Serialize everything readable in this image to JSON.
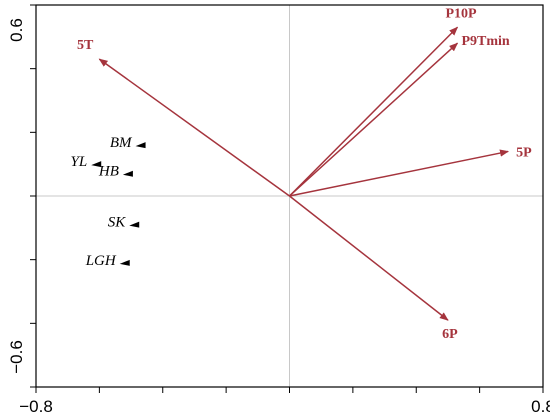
{
  "chart_data": {
    "type": "scatter",
    "title": "",
    "xlabel": "",
    "ylabel": "",
    "xlim": [
      -0.8,
      0.8
    ],
    "ylim": [
      -0.6,
      0.6
    ],
    "x_ticks": [
      -0.8,
      0.8
    ],
    "y_ticks": [
      -0.6,
      0.6
    ],
    "x_minor_step": 0.2,
    "y_minor_step": 0.2,
    "zero_lines": true,
    "colors": {
      "vector": "#a5343d",
      "axis": "#000000",
      "zero_line": "#c8c8c8",
      "site": "#000000"
    },
    "vectors": [
      {
        "name": "5T",
        "x": -0.6,
        "y": 0.43
      },
      {
        "name": "P10P",
        "x": 0.53,
        "y": 0.53
      },
      {
        "name": "P9Tmin",
        "x": 0.53,
        "y": 0.48
      },
      {
        "name": "5P",
        "x": 0.69,
        "y": 0.14
      },
      {
        "name": "6P",
        "x": 0.5,
        "y": -0.39
      }
    ],
    "sites": [
      {
        "name": "BM",
        "x": -0.47,
        "y": 0.16
      },
      {
        "name": "YL",
        "x": -0.61,
        "y": 0.1
      },
      {
        "name": "HB",
        "x": -0.51,
        "y": 0.07
      },
      {
        "name": "SK",
        "x": -0.49,
        "y": -0.09
      },
      {
        "name": "LGH",
        "x": -0.52,
        "y": -0.21
      }
    ]
  }
}
